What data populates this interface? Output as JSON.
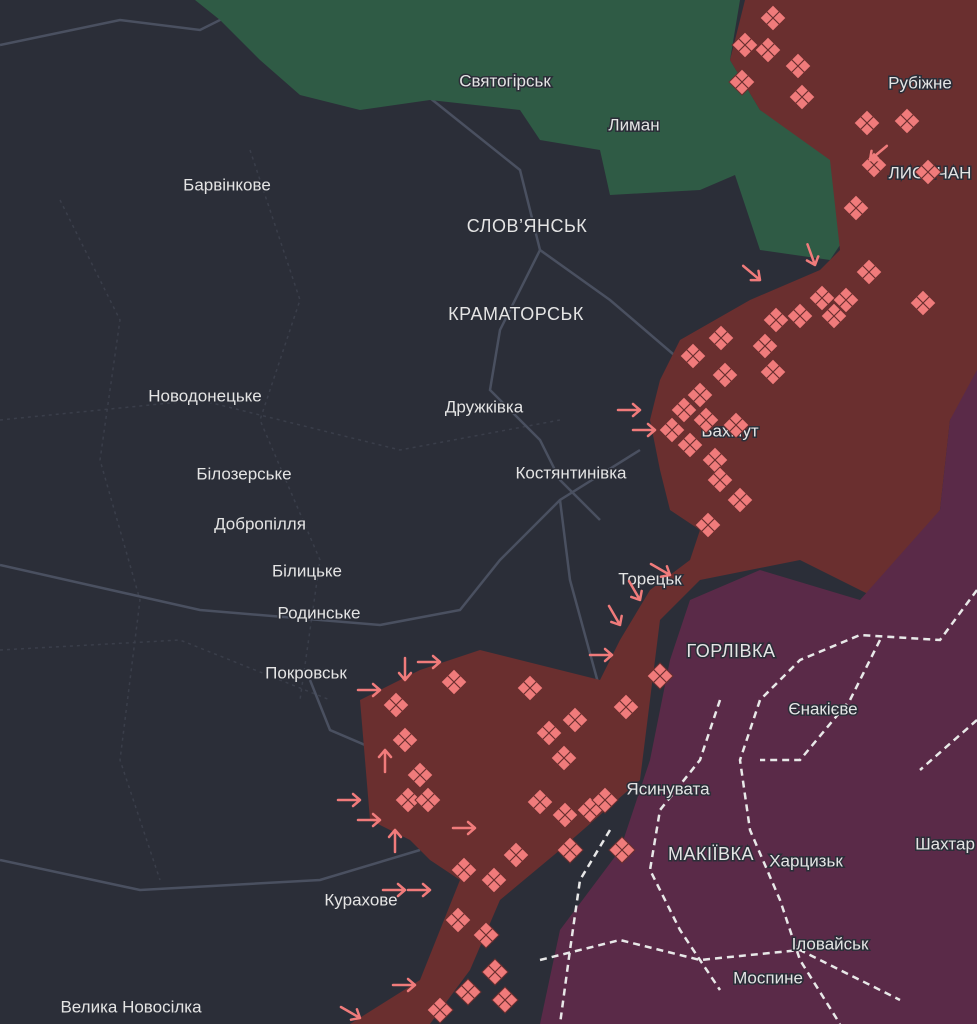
{
  "map": {
    "labels": [
      {
        "text": "Святогірськ"
      },
      {
        "text": "Лиман"
      },
      {
        "text": "Рубіжне"
      },
      {
        "text": "ЛИСИЧАН"
      },
      {
        "text": "Барвінкове"
      },
      {
        "text": "СЛОВ’ЯНСЬК"
      },
      {
        "text": "КРАМАТОРСЬК"
      },
      {
        "text": "Новодонецьке"
      },
      {
        "text": "Дружківка"
      },
      {
        "text": "Бахмут"
      },
      {
        "text": "Костянтинівка"
      },
      {
        "text": "Білозерське"
      },
      {
        "text": "Добропілля"
      },
      {
        "text": "Білицьке"
      },
      {
        "text": "Родинське"
      },
      {
        "text": "Торецьк"
      },
      {
        "text": "ГОРЛІВКА"
      },
      {
        "text": "Покровськ"
      },
      {
        "text": "Єнакієве"
      },
      {
        "text": "Ясинувата"
      },
      {
        "text": "МАКІЇВКА"
      },
      {
        "text": "Харцизьк"
      },
      {
        "text": "Шахтар"
      },
      {
        "text": "Курахове"
      },
      {
        "text": "Іловайськ"
      },
      {
        "text": "Моспине"
      },
      {
        "text": "Велика Новосілка"
      }
    ]
  }
}
